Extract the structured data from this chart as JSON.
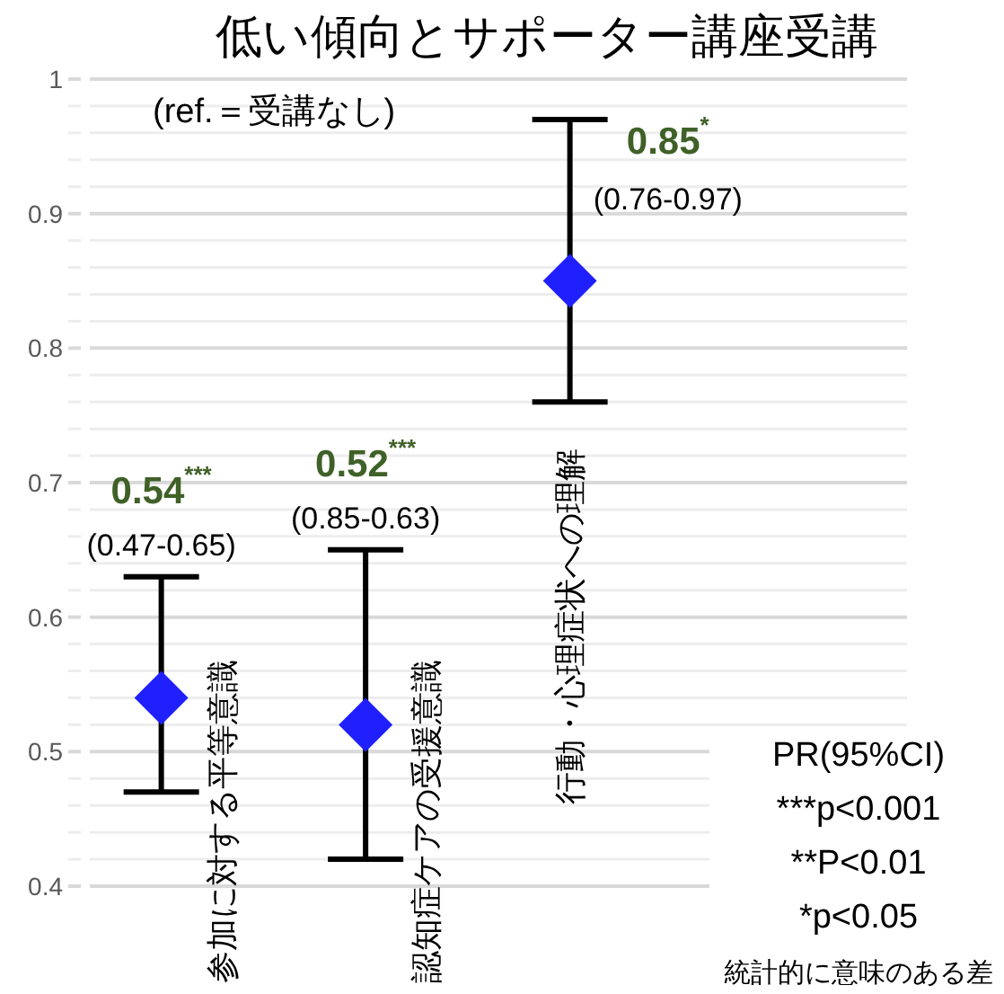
{
  "chart_data": {
    "type": "scatter",
    "title": "低い傾向とサポーター講座受講",
    "categories": [
      "参加に対する平等意識",
      "認知症ケアの受援意識",
      "行動・心理症状への理解"
    ],
    "values": [
      0.54,
      0.52,
      0.85
    ],
    "color": "#2020ff",
    "marker": "diamond",
    "errors": [
      [
        0.47,
        0.63
      ],
      [
        0.42,
        0.65
      ],
      [
        0.76,
        0.97
      ]
    ],
    "value_labels": [
      "0.54$^{***}$\n(0.47-0.65)",
      "0.52$^{***}$\n(0.85-0.63)",
      "0.85$^{*}$\n(0.76-0.97)"
    ],
    "ylim": [
      0.4,
      1
    ],
    "yticks": [
      0.4,
      {
        "value": 0.42,
        "label": null
      },
      {
        "value": 0.44,
        "label": null
      },
      {
        "value": 0.46,
        "label": null
      },
      {
        "value": 0.48,
        "label": null
      },
      0.5,
      {
        "value": 0.52,
        "label": null
      },
      {
        "value": 0.54,
        "label": null
      },
      {
        "value": 0.56,
        "label": null
      },
      {
        "value": 0.58,
        "label": null
      },
      0.6,
      {
        "value": 0.62,
        "label": null
      },
      {
        "value": 0.64,
        "label": null
      },
      {
        "value": 0.66,
        "label": null
      },
      {
        "value": 0.68,
        "label": null
      },
      0.7,
      {
        "value": 0.72,
        "label": null
      },
      {
        "value": 0.74,
        "label": null
      },
      {
        "value": 0.76,
        "label": null
      },
      {
        "value": 0.78,
        "label": null
      },
      0.8,
      {
        "value": 0.82,
        "label": null
      },
      {
        "value": 0.84,
        "label": null
      },
      {
        "value": 0.86,
        "label": null
      },
      {
        "value": 0.88,
        "label": null
      },
      0.9,
      {
        "value": 0.92,
        "label": null
      },
      {
        "value": 0.94,
        "label": null
      },
      {
        "value": 0.96,
        "label": null
      },
      {
        "value": 0.98,
        "label": null
      },
      1
    ],
    "grid": true,
    "annotations": [
      "(ref.＝受講なし)",
      "PR(95%CI)",
      "***p<0.001",
      "**P<0.01",
      "*p<0.05",
      "統計的に意味のある差"
    ]
  }
}
